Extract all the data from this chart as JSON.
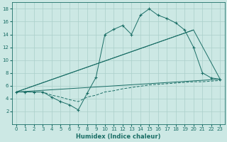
{
  "xlabel": "Humidex (Indice chaleur)",
  "bg_color": "#cce8e4",
  "line_color": "#1a6e66",
  "grid_color": "#aacfca",
  "xlim": [
    -0.5,
    23.5
  ],
  "ylim": [
    0,
    19
  ],
  "xticks": [
    0,
    1,
    2,
    3,
    4,
    5,
    6,
    7,
    8,
    9,
    10,
    11,
    12,
    13,
    14,
    15,
    16,
    17,
    18,
    19,
    20,
    21,
    22,
    23
  ],
  "yticks": [
    2,
    4,
    6,
    8,
    10,
    12,
    14,
    16,
    18
  ],
  "line1_x": [
    0,
    1,
    2,
    3,
    4,
    5,
    6,
    7,
    8,
    9,
    10,
    11,
    12,
    13,
    14,
    15,
    16,
    17,
    18,
    19,
    20,
    21,
    22,
    23
  ],
  "line1_y": [
    5,
    5,
    5,
    5,
    4.2,
    3.5,
    3.0,
    2.2,
    4.8,
    7.3,
    14.0,
    14.8,
    15.4,
    14.0,
    17.0,
    18.0,
    17.0,
    16.5,
    15.8,
    14.7,
    12.0,
    8.0,
    7.2,
    7.0
  ],
  "line2_x": [
    0,
    20,
    23
  ],
  "line2_y": [
    5,
    14.7,
    7.0
  ],
  "line3_x": [
    0,
    20
  ],
  "line3_y": [
    5,
    14.7
  ],
  "line4_x": [
    0,
    23
  ],
  "line4_y": [
    5,
    7.0
  ],
  "dashed_x": [
    0,
    1,
    2,
    3,
    4,
    5,
    6,
    7,
    8,
    9,
    10,
    11,
    12,
    13,
    14,
    15,
    16,
    17,
    18,
    19,
    20,
    21,
    22,
    23
  ],
  "dashed_y": [
    5.0,
    5.0,
    5.0,
    5.0,
    4.5,
    4.2,
    3.8,
    3.5,
    4.2,
    4.5,
    5.0,
    5.2,
    5.5,
    5.7,
    5.9,
    6.1,
    6.2,
    6.3,
    6.4,
    6.5,
    6.6,
    6.6,
    6.7,
    6.8
  ]
}
